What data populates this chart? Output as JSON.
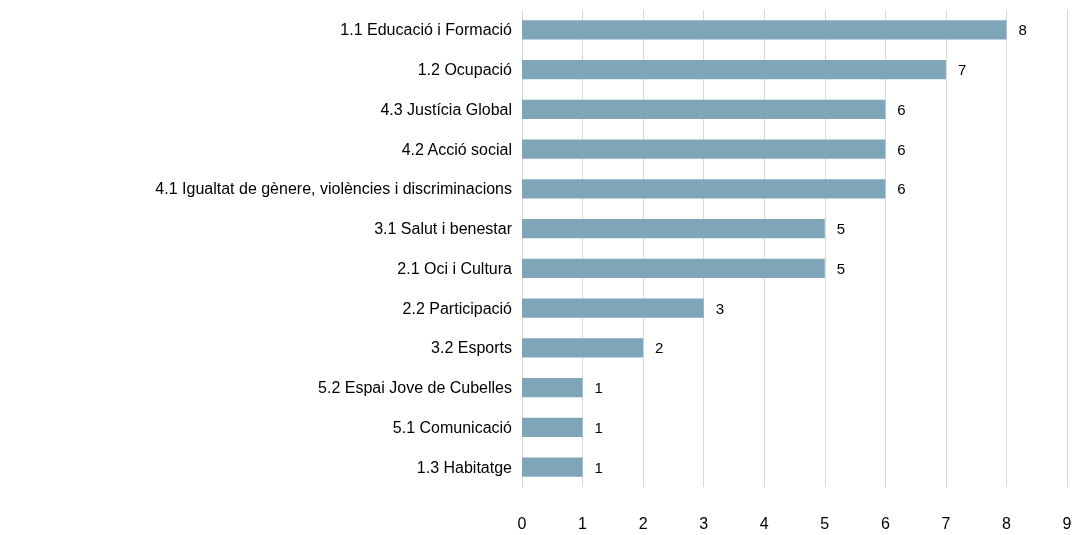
{
  "chart_data": {
    "type": "bar",
    "orientation": "horizontal",
    "categories": [
      "1.1 Educació i Formació",
      "1.2 Ocupació",
      "4.3 Justícia Global",
      "4.2 Acció social",
      "4.1 Igualtat de gènere, violències i discriminacions",
      "3.1 Salut i benestar",
      "2.1 Oci i Cultura",
      "2.2 Participació",
      "3.2 Esports",
      "5.2 Espai Jove de Cubelles",
      "5.1 Comunicació",
      "1.3 Habitatge"
    ],
    "values": [
      8,
      7,
      6,
      6,
      6,
      5,
      5,
      3,
      2,
      1,
      1,
      1
    ],
    "color": "#7fa5b9",
    "xlim": [
      0,
      9
    ],
    "xticks": [
      0,
      1,
      2,
      3,
      4,
      5,
      6,
      7,
      8,
      9
    ],
    "grid": "x",
    "data_labels": true
  }
}
